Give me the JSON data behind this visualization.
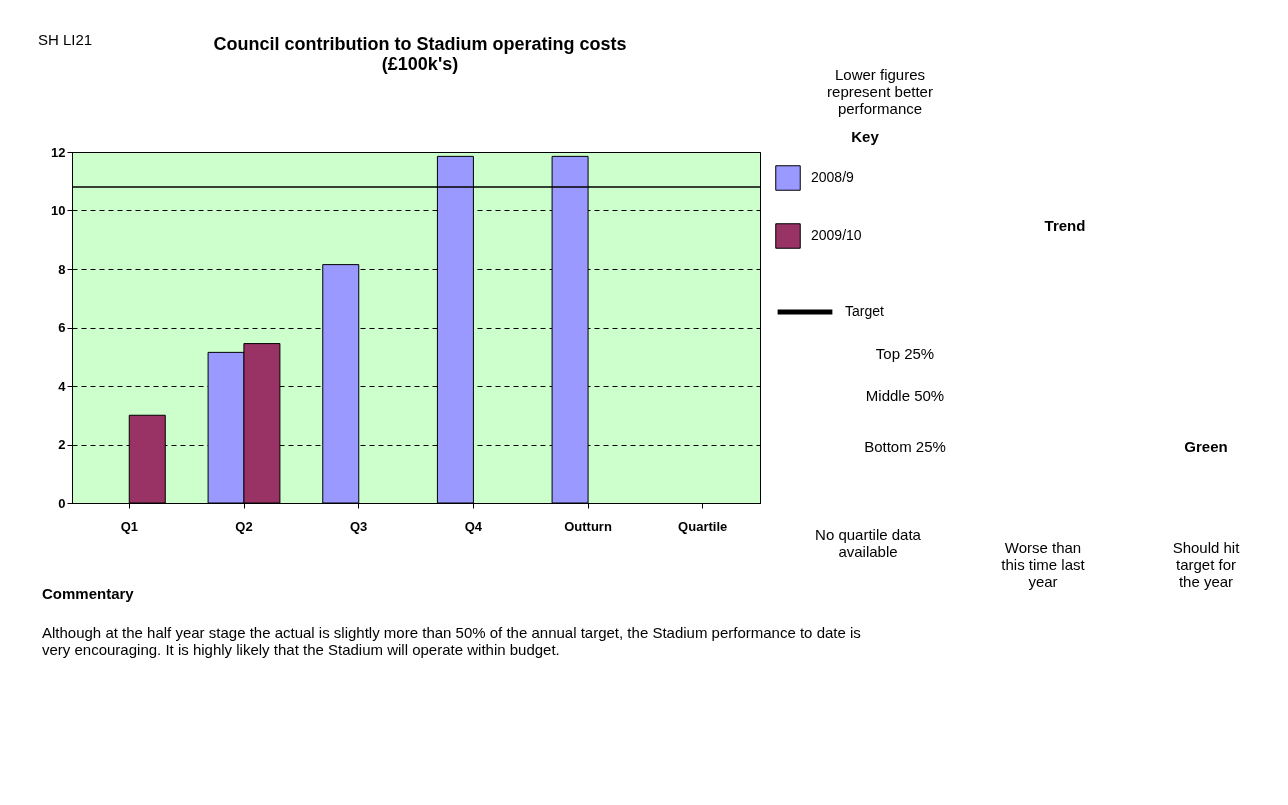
{
  "chart_data": {
    "type": "bar",
    "title": "Council contribution to Stadium operating costs\n(£100k's)",
    "categories": [
      "Q1",
      "Q2",
      "Q3",
      "Q4",
      "Outturn",
      "Quartile"
    ],
    "series": [
      {
        "name": "2008/9",
        "color": "#9999ff",
        "values": [
          null,
          5.15,
          8.15,
          11.85,
          11.85,
          null
        ]
      },
      {
        "name": "2009/10",
        "color": "#993366",
        "values": [
          3.0,
          5.45,
          null,
          null,
          null,
          null
        ]
      }
    ],
    "ylim": [
      0,
      12
    ],
    "yticks": [
      0,
      2,
      4,
      6,
      8,
      10,
      12
    ],
    "grid": "y",
    "legend": "right",
    "ref_lines": [
      {
        "axis": "y",
        "value": 10.8,
        "label": "Target",
        "color": "#000000"
      }
    ],
    "annotations": [
      "SH LI21",
      "Lower figures\nrepresent better\nperformance",
      "Key",
      "Top 25%",
      "Middle 50%",
      "Bottom 25%",
      "No quartile data\navailable",
      "Trend",
      "Worse than\nthis time last\nyear",
      "Should hit\ntarget for\nthe year",
      "Green",
      "Commentary",
      "Although at the half year stage the actual is slightly more than 50% of the annual target, the Stadium performance to date is\nvery encouraging. It is highly likely that the Stadium will operate within budget."
    ]
  }
}
